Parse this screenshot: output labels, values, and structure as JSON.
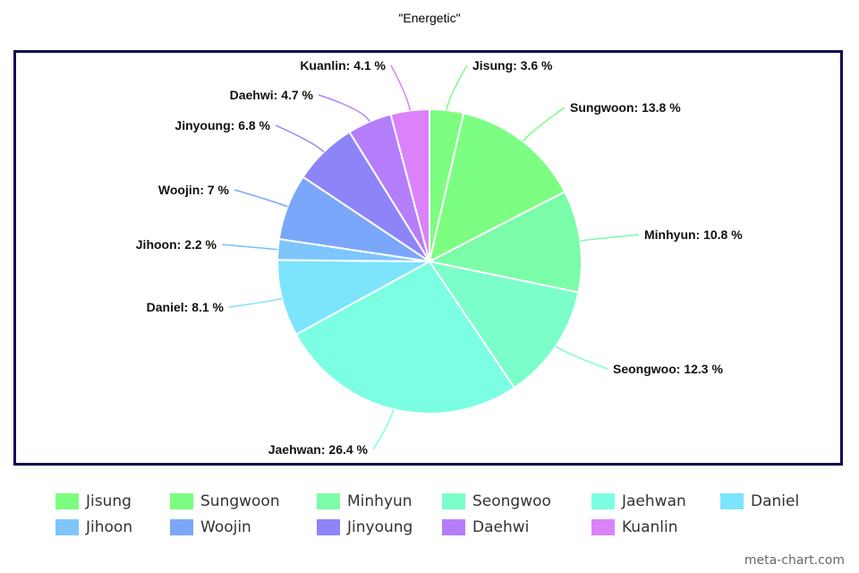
{
  "chart_data": {
    "type": "pie",
    "title": "\"Energetic\"",
    "slices": [
      {
        "label": "Jisung",
        "value": 3.6,
        "display": "Jisung: 3.6 %",
        "color": "#7dfd80"
      },
      {
        "label": "Sungwoon",
        "value": 13.8,
        "display": "Sungwoon: 13.8 %",
        "color": "#7cfe82"
      },
      {
        "label": "Minhyun",
        "value": 10.8,
        "display": "Minhyun: 10.8 %",
        "color": "#7afca8"
      },
      {
        "label": "Seongwoo",
        "value": 12.3,
        "display": "Seongwoo: 12.3 %",
        "color": "#7bfec9"
      },
      {
        "label": "Jaehwan",
        "value": 26.4,
        "display": "Jaehwan: 26.4 %",
        "color": "#7cfee3"
      },
      {
        "label": "Daniel",
        "value": 8.1,
        "display": "Daniel: 8.1 %",
        "color": "#7ce4fc"
      },
      {
        "label": "Jihoon",
        "value": 2.2,
        "display": "Jihoon: 2.2 %",
        "color": "#7dc5fc"
      },
      {
        "label": "Woojin",
        "value": 7.0,
        "display": "Woojin: 7 %",
        "color": "#7ba7fa"
      },
      {
        "label": "Jinyoung",
        "value": 6.8,
        "display": "Jinyoung: 6.8 %",
        "color": "#8e84fa"
      },
      {
        "label": "Daehwi",
        "value": 4.7,
        "display": "Daehwi: 4.7 %",
        "color": "#b47efb"
      },
      {
        "label": "Kuanlin",
        "value": 4.1,
        "display": "Kuanlin: 4.1 %",
        "color": "#db82fa"
      }
    ],
    "legend_position": "bottom",
    "border_color": "#0c0c50"
  },
  "watermark": "meta-chart.com"
}
